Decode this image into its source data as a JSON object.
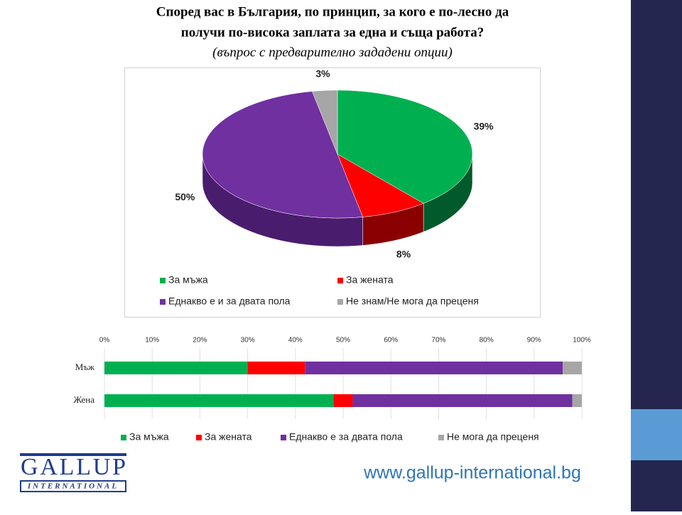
{
  "chart_data": [
    {
      "type": "pie3d",
      "title": "Според вас в България, по принцип, за кого е по-лесно да получи по-висока заплата за една и съща работа?",
      "title_lines": [
        "Според вас в България, по принцип, за кого е по-лесно да",
        "получи по-висока заплата за една и съща работа?"
      ],
      "subtitle": "(въпрос с предварително зададени опции)",
      "categories": [
        "За мъжа",
        "За жената",
        "Еднакво е и за двата пола",
        "Не знам/Не мога да преценя"
      ],
      "values": [
        39,
        8,
        50,
        3
      ],
      "value_labels": [
        "39%",
        "8%",
        "50%",
        "3%"
      ],
      "colors": [
        "#00b050",
        "#ff0000",
        "#7030a0",
        "#a6a6a6"
      ],
      "side_colors": [
        "#005a2b",
        "#8a0000",
        "#4a1c6e",
        "#6f6f6f"
      ]
    },
    {
      "type": "stacked-hbar",
      "categories": [
        "Мъж",
        "Жена"
      ],
      "series": [
        {
          "name": "За мъжа",
          "color": "#00b050",
          "values": [
            30,
            48
          ]
        },
        {
          "name": "За жената",
          "color": "#ff0000",
          "values": [
            12,
            4
          ]
        },
        {
          "name": "Еднакво е за двата пола",
          "color": "#7030a0",
          "values": [
            54,
            46
          ]
        },
        {
          "name": "Не мога да преценя",
          "color": "#a6a6a6",
          "values": [
            4,
            2
          ]
        }
      ],
      "xlim": [
        0,
        100
      ],
      "xticks": [
        {
          "value": 0,
          "label": "0%"
        },
        {
          "value": 10,
          "label": "10%"
        },
        {
          "value": 20,
          "label": "20%"
        },
        {
          "value": 30,
          "label": "30%"
        },
        {
          "value": 40,
          "label": "40%"
        },
        {
          "value": 50,
          "label": "50%"
        },
        {
          "value": 60,
          "label": "60%"
        },
        {
          "value": 70,
          "label": "70%"
        },
        {
          "value": 80,
          "label": "80%"
        },
        {
          "value": 90,
          "label": "90%"
        },
        {
          "value": 100,
          "label": "100%"
        }
      ]
    }
  ],
  "footer": {
    "logo": "GALLUP",
    "logo_sub": "INTERNATIONAL",
    "url": "www.gallup-international.bg"
  }
}
